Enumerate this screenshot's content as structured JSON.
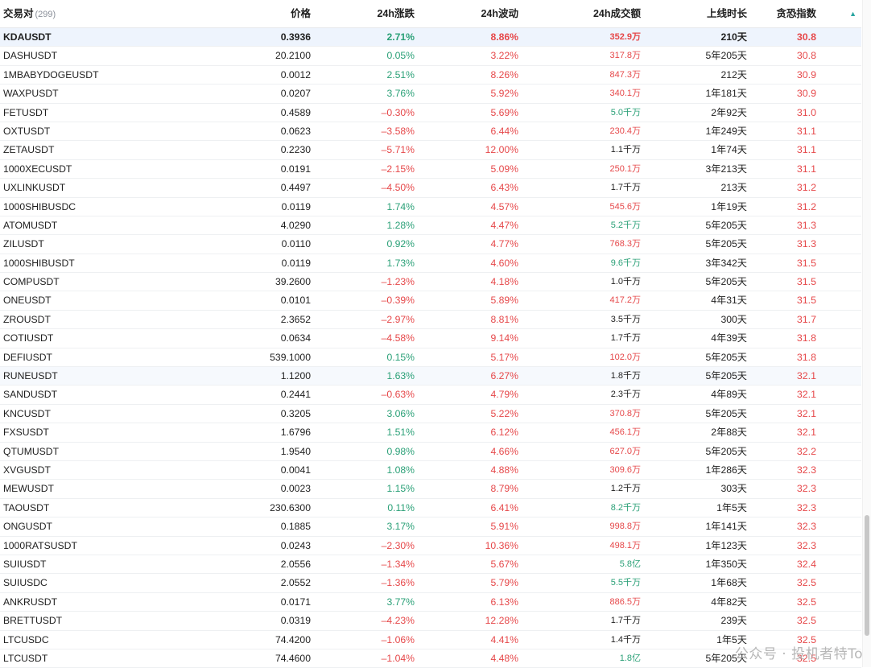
{
  "header": {
    "pair": "交易对",
    "count": "(299)",
    "price": "价格",
    "change": "24h涨跌",
    "volatility": "24h波动",
    "amount": "24h成交额",
    "listed": "上线时长",
    "fear_greed": "贪恐指数",
    "sort_icon": "▲"
  },
  "colors": {
    "up": "#2aa077",
    "down": "#e6484a",
    "highlight_row": "#eef4fd"
  },
  "rows": [
    {
      "symbol": "KDAUSDT",
      "price": "0.3936",
      "change": "2.71%",
      "volatility": "8.86%",
      "amount": "352.9万",
      "listed": "210天",
      "fear_greed": "30.8"
    },
    {
      "symbol": "DASHUSDT",
      "price": "20.2100",
      "change": "0.05%",
      "volatility": "3.22%",
      "amount": "317.8万",
      "listed": "5年205天",
      "fear_greed": "30.8"
    },
    {
      "symbol": "1MBABYDOGEUSDT",
      "price": "0.0012",
      "change": "2.51%",
      "volatility": "8.26%",
      "amount": "847.3万",
      "listed": "212天",
      "fear_greed": "30.9"
    },
    {
      "symbol": "WAXPUSDT",
      "price": "0.0207",
      "change": "3.76%",
      "volatility": "5.92%",
      "amount": "340.1万",
      "listed": "1年181天",
      "fear_greed": "30.9"
    },
    {
      "symbol": "FETUSDT",
      "price": "0.4589",
      "change": "–0.30%",
      "volatility": "5.69%",
      "amount": "5.0千万",
      "listed": "2年92天",
      "fear_greed": "31.0"
    },
    {
      "symbol": "OXTUSDT",
      "price": "0.0623",
      "change": "–3.58%",
      "volatility": "6.44%",
      "amount": "230.4万",
      "listed": "1年249天",
      "fear_greed": "31.1"
    },
    {
      "symbol": "ZETAUSDT",
      "price": "0.2230",
      "change": "–5.71%",
      "volatility": "12.00%",
      "amount": "1.1千万",
      "listed": "1年74天",
      "fear_greed": "31.1"
    },
    {
      "symbol": "1000XECUSDT",
      "price": "0.0191",
      "change": "–2.15%",
      "volatility": "5.09%",
      "amount": "250.1万",
      "listed": "3年213天",
      "fear_greed": "31.1"
    },
    {
      "symbol": "UXLINKUSDT",
      "price": "0.4497",
      "change": "–4.50%",
      "volatility": "6.43%",
      "amount": "1.7千万",
      "listed": "213天",
      "fear_greed": "31.2"
    },
    {
      "symbol": "1000SHIBUSDC",
      "price": "0.0119",
      "change": "1.74%",
      "volatility": "4.57%",
      "amount": "545.6万",
      "listed": "1年19天",
      "fear_greed": "31.2"
    },
    {
      "symbol": "ATOMUSDT",
      "price": "4.0290",
      "change": "1.28%",
      "volatility": "4.47%",
      "amount": "5.2千万",
      "listed": "5年205天",
      "fear_greed": "31.3"
    },
    {
      "symbol": "ZILUSDT",
      "price": "0.0110",
      "change": "0.92%",
      "volatility": "4.77%",
      "amount": "768.3万",
      "listed": "5年205天",
      "fear_greed": "31.3"
    },
    {
      "symbol": "1000SHIBUSDT",
      "price": "0.0119",
      "change": "1.73%",
      "volatility": "4.60%",
      "amount": "9.6千万",
      "listed": "3年342天",
      "fear_greed": "31.5"
    },
    {
      "symbol": "COMPUSDT",
      "price": "39.2600",
      "change": "–1.23%",
      "volatility": "4.18%",
      "amount": "1.0千万",
      "listed": "5年205天",
      "fear_greed": "31.5"
    },
    {
      "symbol": "ONEUSDT",
      "price": "0.0101",
      "change": "–0.39%",
      "volatility": "5.89%",
      "amount": "417.2万",
      "listed": "4年31天",
      "fear_greed": "31.5"
    },
    {
      "symbol": "ZROUSDT",
      "price": "2.3652",
      "change": "–2.97%",
      "volatility": "8.81%",
      "amount": "3.5千万",
      "listed": "300天",
      "fear_greed": "31.7"
    },
    {
      "symbol": "COTIUSDT",
      "price": "0.0634",
      "change": "–4.58%",
      "volatility": "9.14%",
      "amount": "1.7千万",
      "listed": "4年39天",
      "fear_greed": "31.8"
    },
    {
      "symbol": "DEFIUSDT",
      "price": "539.1000",
      "change": "0.15%",
      "volatility": "5.17%",
      "amount": "102.0万",
      "listed": "5年205天",
      "fear_greed": "31.8"
    },
    {
      "symbol": "RUNEUSDT",
      "price": "1.1200",
      "change": "1.63%",
      "volatility": "6.27%",
      "amount": "1.8千万",
      "listed": "5年205天",
      "fear_greed": "32.1"
    },
    {
      "symbol": "SANDUSDT",
      "price": "0.2441",
      "change": "–0.63%",
      "volatility": "4.79%",
      "amount": "2.3千万",
      "listed": "4年89天",
      "fear_greed": "32.1"
    },
    {
      "symbol": "KNCUSDT",
      "price": "0.3205",
      "change": "3.06%",
      "volatility": "5.22%",
      "amount": "370.8万",
      "listed": "5年205天",
      "fear_greed": "32.1"
    },
    {
      "symbol": "FXSUSDT",
      "price": "1.6796",
      "change": "1.51%",
      "volatility": "6.12%",
      "amount": "456.1万",
      "listed": "2年88天",
      "fear_greed": "32.1"
    },
    {
      "symbol": "QTUMUSDT",
      "price": "1.9540",
      "change": "0.98%",
      "volatility": "4.66%",
      "amount": "627.0万",
      "listed": "5年205天",
      "fear_greed": "32.2"
    },
    {
      "symbol": "XVGUSDT",
      "price": "0.0041",
      "change": "1.08%",
      "volatility": "4.88%",
      "amount": "309.6万",
      "listed": "1年286天",
      "fear_greed": "32.3"
    },
    {
      "symbol": "MEWUSDT",
      "price": "0.0023",
      "change": "1.15%",
      "volatility": "8.79%",
      "amount": "1.2千万",
      "listed": "303天",
      "fear_greed": "32.3"
    },
    {
      "symbol": "TAOUSDT",
      "price": "230.6300",
      "change": "0.11%",
      "volatility": "6.41%",
      "amount": "8.2千万",
      "listed": "1年5天",
      "fear_greed": "32.3"
    },
    {
      "symbol": "ONGUSDT",
      "price": "0.1885",
      "change": "3.17%",
      "volatility": "5.91%",
      "amount": "998.8万",
      "listed": "1年141天",
      "fear_greed": "32.3"
    },
    {
      "symbol": "1000RATSUSDT",
      "price": "0.0243",
      "change": "–2.30%",
      "volatility": "10.36%",
      "amount": "498.1万",
      "listed": "1年123天",
      "fear_greed": "32.3"
    },
    {
      "symbol": "SUIUSDT",
      "price": "2.0556",
      "change": "–1.34%",
      "volatility": "5.67%",
      "amount": "5.8亿",
      "listed": "1年350天",
      "fear_greed": "32.4"
    },
    {
      "symbol": "SUIUSDC",
      "price": "2.0552",
      "change": "–1.36%",
      "volatility": "5.79%",
      "amount": "5.5千万",
      "listed": "1年68天",
      "fear_greed": "32.5"
    },
    {
      "symbol": "ANKRUSDT",
      "price": "0.0171",
      "change": "3.77%",
      "volatility": "6.13%",
      "amount": "886.5万",
      "listed": "4年82天",
      "fear_greed": "32.5"
    },
    {
      "symbol": "BRETTUSDT",
      "price": "0.0319",
      "change": "–4.23%",
      "volatility": "12.28%",
      "amount": "1.7千万",
      "listed": "239天",
      "fear_greed": "32.5"
    },
    {
      "symbol": "LTCUSDC",
      "price": "74.4200",
      "change": "–1.06%",
      "volatility": "4.41%",
      "amount": "1.4千万",
      "listed": "1年5天",
      "fear_greed": "32.5"
    },
    {
      "symbol": "LTCUSDT",
      "price": "74.4600",
      "change": "–1.04%",
      "volatility": "4.48%",
      "amount": "1.8亿",
      "listed": "5年205天",
      "fear_greed": "32.5"
    }
  ],
  "watermark": "公众号 · 投机者特To"
}
